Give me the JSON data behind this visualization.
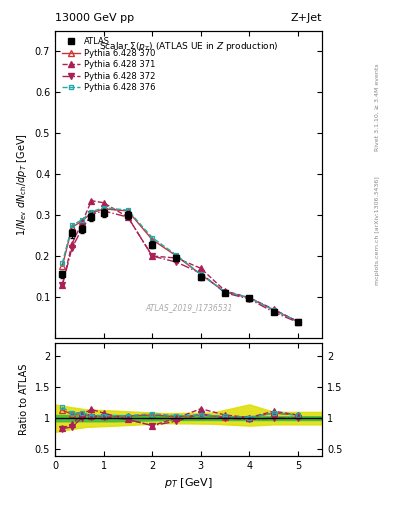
{
  "title_top": "13000 GeV pp",
  "title_right": "Z+Jet",
  "plot_title": "Scalar Σ(p_{T}) (ATLAS UE in Z production)",
  "ylabel_main": "1/N_{ev} dN_{ch}/dp_{T} [GeV]",
  "ylabel_ratio": "Ratio to ATLAS",
  "xlabel": "p_{T} [GeV]",
  "watermark": "ATLAS_2019_I1736531",
  "right_label": "mcplots.cern.ch [arXiv:1306.3436]",
  "rivet_label": "Rivet 3.1.10, ≥ 3.4M events",
  "atlas_x": [
    0.15,
    0.35,
    0.55,
    0.75,
    1.0,
    1.5,
    2.0,
    2.5,
    3.0,
    3.5,
    4.0,
    4.5,
    5.0
  ],
  "atlas_y": [
    0.155,
    0.255,
    0.265,
    0.295,
    0.305,
    0.3,
    0.228,
    0.195,
    0.148,
    0.11,
    0.097,
    0.063,
    0.038
  ],
  "atlas_yerr": [
    0.008,
    0.01,
    0.01,
    0.01,
    0.01,
    0.01,
    0.008,
    0.008,
    0.007,
    0.006,
    0.006,
    0.005,
    0.004
  ],
  "py370_x": [
    0.15,
    0.35,
    0.55,
    0.75,
    1.0,
    1.5,
    2.0,
    2.5,
    3.0,
    3.5,
    4.0,
    4.5,
    5.0
  ],
  "py370_y": [
    0.175,
    0.27,
    0.285,
    0.305,
    0.315,
    0.31,
    0.24,
    0.2,
    0.155,
    0.112,
    0.098,
    0.068,
    0.04
  ],
  "py371_x": [
    0.15,
    0.35,
    0.55,
    0.75,
    1.0,
    1.5,
    2.0,
    2.5,
    3.0,
    3.5,
    4.0,
    4.5,
    5.0
  ],
  "py371_y": [
    0.13,
    0.23,
    0.28,
    0.335,
    0.33,
    0.295,
    0.2,
    0.195,
    0.17,
    0.115,
    0.098,
    0.07,
    0.04
  ],
  "py372_x": [
    0.15,
    0.35,
    0.55,
    0.75,
    1.0,
    1.5,
    2.0,
    2.5,
    3.0,
    3.5,
    4.0,
    4.5,
    5.0
  ],
  "py372_y": [
    0.128,
    0.22,
    0.265,
    0.302,
    0.31,
    0.295,
    0.2,
    0.185,
    0.158,
    0.11,
    0.095,
    0.063,
    0.038
  ],
  "py376_x": [
    0.15,
    0.35,
    0.55,
    0.75,
    1.0,
    1.5,
    2.0,
    2.5,
    3.0,
    3.5,
    4.0,
    4.5,
    5.0
  ],
  "py376_y": [
    0.182,
    0.275,
    0.288,
    0.308,
    0.318,
    0.312,
    0.245,
    0.202,
    0.155,
    0.113,
    0.098,
    0.068,
    0.04
  ],
  "ratio370_y": [
    1.13,
    1.06,
    1.07,
    1.035,
    1.03,
    1.035,
    1.05,
    1.025,
    1.05,
    1.02,
    1.01,
    1.08,
    1.05
  ],
  "ratio371_y": [
    0.84,
    0.9,
    1.06,
    1.14,
    1.08,
    0.98,
    0.88,
    1.0,
    1.15,
    1.05,
    1.01,
    1.11,
    1.05
  ],
  "ratio372_y": [
    0.83,
    0.86,
    1.0,
    1.02,
    1.02,
    0.98,
    0.88,
    0.95,
    1.07,
    1.0,
    0.98,
    1.0,
    1.0
  ],
  "ratio376_y": [
    1.17,
    1.08,
    1.09,
    1.04,
    1.04,
    1.04,
    1.07,
    1.04,
    1.05,
    1.03,
    1.01,
    1.08,
    1.05
  ],
  "green_band_x": [
    0.0,
    0.3,
    0.65,
    1.25,
    2.25,
    3.25,
    4.25,
    5.5
  ],
  "green_band_lo": [
    0.95,
    0.95,
    0.95,
    0.95,
    0.97,
    0.97,
    0.97,
    0.97
  ],
  "green_band_hi": [
    1.05,
    1.05,
    1.05,
    1.05,
    1.03,
    1.03,
    1.03,
    1.03
  ],
  "yellow_band_x": [
    0.0,
    0.3,
    0.65,
    1.25,
    2.25,
    3.25,
    4.0,
    4.5,
    5.5
  ],
  "yellow_band_lo": [
    0.78,
    0.82,
    0.86,
    0.88,
    0.92,
    0.91,
    0.88,
    0.9,
    0.9
  ],
  "yellow_band_hi": [
    1.22,
    1.18,
    1.14,
    1.12,
    1.08,
    1.09,
    1.22,
    1.1,
    1.1
  ],
  "color_370": "#cc3333",
  "color_371": "#aa2255",
  "color_372": "#aa2255",
  "color_376": "#22aaaa",
  "color_atlas": "#000000",
  "color_green": "#44bb44",
  "color_yellow": "#dddd00",
  "xlim": [
    0,
    5.5
  ],
  "ylim_main": [
    0.0,
    0.75
  ],
  "ylim_ratio": [
    0.4,
    2.2
  ],
  "yticks_main": [
    0.1,
    0.2,
    0.3,
    0.4,
    0.5,
    0.6,
    0.7
  ],
  "yticks_ratio": [
    0.5,
    1.0,
    1.5,
    2.0
  ],
  "xticks": [
    0,
    1,
    2,
    3,
    4,
    5
  ]
}
